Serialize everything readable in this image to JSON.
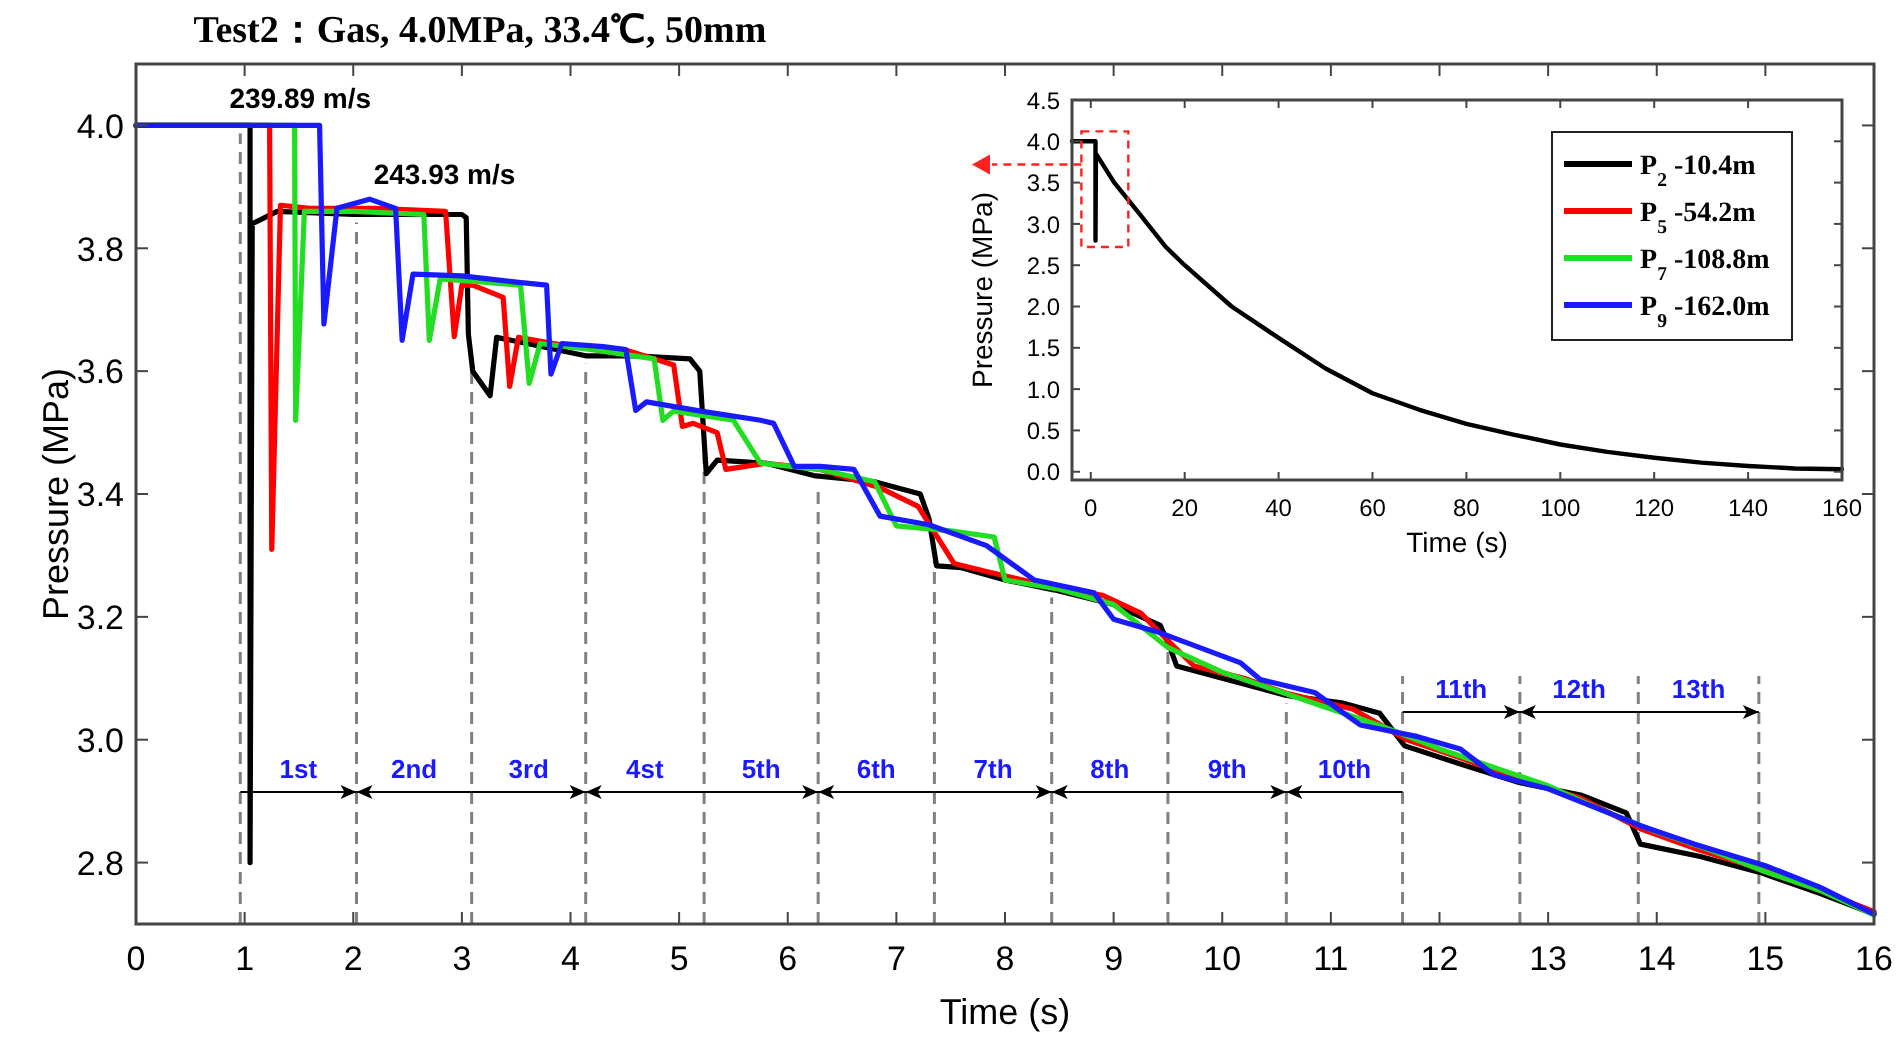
{
  "chart_data": [
    {
      "type": "line",
      "title": "Test2：Gas, 4.0MPa, 33.4℃, 50mm",
      "xlabel": "Time (s)",
      "ylabel": "Pressure (MPa)",
      "xlim": [
        0,
        16
      ],
      "xticks": [
        0,
        1,
        2,
        3,
        4,
        5,
        6,
        7,
        8,
        9,
        10,
        11,
        12,
        13,
        14,
        15,
        16
      ],
      "ylim": [
        2.7,
        4.1
      ],
      "yticks": [
        2.8,
        {
          "value": 3,
          "label": "3.0"
        },
        3.2,
        3.4,
        3.6,
        3.8,
        {
          "value": 4,
          "label": "4.0"
        }
      ],
      "grid": false,
      "legend": "top right",
      "marker": "none",
      "line_style": "solid",
      "series": [
        {
          "name": "P$_{2}$ -10.4m",
          "color": "#000000",
          "x": [
            0,
            1.05,
            1.05,
            1.07,
            1.3,
            2.0,
            2.5,
            3.0,
            3.04,
            3.06,
            3.1,
            3.26,
            3.32,
            3.6,
            4.14,
            4.6,
            5.1,
            5.19,
            5.25,
            5.35,
            5.8,
            6.24,
            6.8,
            7.22,
            7.3,
            7.37,
            7.6,
            8.0,
            8.45,
            9.0,
            9.43,
            9.52,
            9.58,
            10.0,
            10.59,
            11.1,
            11.45,
            11.68,
            12.2,
            12.74,
            13.3,
            13.72,
            13.85,
            14.4,
            14.95,
            15.5,
            16
          ],
          "values": [
            4.0,
            4.0,
            2.8,
            3.84,
            3.86,
            3.855,
            3.855,
            3.855,
            3.85,
            3.66,
            3.6,
            3.56,
            3.655,
            3.645,
            3.625,
            3.625,
            3.62,
            3.6,
            3.433,
            3.455,
            3.45,
            3.43,
            3.42,
            3.4,
            3.36,
            3.283,
            3.28,
            3.26,
            3.244,
            3.22,
            3.186,
            3.15,
            3.12,
            3.1,
            3.072,
            3.06,
            3.043,
            2.99,
            2.96,
            2.93,
            2.91,
            2.881,
            2.83,
            2.81,
            2.784,
            2.75,
            2.716
          ]
        },
        {
          "name": "P$_{5}$ -54.2m",
          "color": "#ff0000",
          "x": [
            0,
            1.23,
            1.25,
            1.33,
            1.6,
            2.2,
            2.85,
            2.93,
            3.0,
            3.1,
            3.38,
            3.44,
            3.52,
            4.0,
            4.5,
            4.95,
            5.03,
            5.13,
            5.35,
            5.43,
            5.8,
            6.3,
            6.85,
            7.2,
            7.53,
            7.8,
            8.4,
            8.9,
            9.25,
            9.45,
            9.74,
            10.2,
            10.6,
            11.2,
            11.7,
            12.2,
            12.74,
            13.3,
            13.85,
            14.4,
            14.95,
            15.5,
            16
          ],
          "values": [
            4.0,
            4.0,
            3.31,
            3.87,
            3.865,
            3.865,
            3.86,
            3.656,
            3.74,
            3.74,
            3.72,
            3.575,
            3.655,
            3.64,
            3.635,
            3.61,
            3.51,
            3.515,
            3.5,
            3.44,
            3.45,
            3.44,
            3.41,
            3.38,
            3.287,
            3.275,
            3.25,
            3.235,
            3.206,
            3.17,
            3.12,
            3.1,
            3.075,
            3.05,
            3.0,
            2.97,
            2.935,
            2.905,
            2.855,
            2.82,
            2.79,
            2.755,
            2.72
          ]
        },
        {
          "name": "P$_{7}$ -108.8m",
          "color": "#22dd22",
          "x": [
            0,
            1.46,
            1.47,
            1.55,
            2.0,
            2.65,
            2.7,
            2.8,
            3.2,
            3.54,
            3.62,
            3.72,
            4.2,
            4.77,
            4.85,
            4.95,
            5.5,
            5.75,
            6.3,
            6.8,
            7.0,
            7.5,
            7.9,
            8.0,
            8.5,
            9.0,
            9.5,
            10.0,
            10.5,
            11.0,
            11.5,
            12.0,
            12.5,
            13.0,
            13.5,
            14.0,
            14.5,
            15.0,
            15.5,
            16
          ],
          "values": [
            4.0,
            4.0,
            3.52,
            3.86,
            3.86,
            3.855,
            3.65,
            3.75,
            3.745,
            3.74,
            3.58,
            3.645,
            3.635,
            3.62,
            3.52,
            3.535,
            3.52,
            3.45,
            3.44,
            3.42,
            3.348,
            3.34,
            3.33,
            3.26,
            3.245,
            3.22,
            3.15,
            3.11,
            3.08,
            3.05,
            3.02,
            2.985,
            2.955,
            2.925,
            2.885,
            2.85,
            2.82,
            2.785,
            2.755,
            2.715
          ]
        },
        {
          "name": "P$_{9}$ -162.0m",
          "color": "#1a1aff",
          "x": [
            0,
            1.69,
            1.73,
            1.85,
            2.15,
            2.39,
            2.45,
            2.55,
            3.0,
            3.5,
            3.78,
            3.82,
            3.92,
            4.3,
            4.51,
            4.6,
            4.7,
            5.2,
            5.75,
            5.87,
            6.06,
            6.3,
            6.61,
            6.85,
            7.3,
            7.83,
            8.27,
            8.82,
            9.0,
            9.43,
            10.17,
            10.35,
            10.85,
            11.27,
            11.8,
            12.19,
            12.5,
            13.0,
            13.5,
            13.85,
            14.35,
            15.0,
            15.5,
            16
          ],
          "values": [
            4.0,
            4.0,
            3.677,
            3.865,
            3.88,
            3.865,
            3.65,
            3.758,
            3.755,
            3.745,
            3.74,
            3.595,
            3.645,
            3.64,
            3.635,
            3.536,
            3.55,
            3.535,
            3.52,
            3.515,
            3.445,
            3.445,
            3.44,
            3.364,
            3.35,
            3.316,
            3.26,
            3.239,
            3.196,
            3.174,
            3.125,
            3.098,
            3.077,
            3.024,
            3.005,
            2.985,
            2.943,
            2.92,
            2.885,
            2.86,
            2.83,
            2.795,
            2.76,
            2.716
          ]
        }
      ],
      "ref_lines": [
        {
          "axis": "x",
          "value": 0.96,
          "color": "#808080",
          "line_style": "dashed"
        },
        {
          "axis": "x",
          "value": 2.03,
          "color": "#808080",
          "line_style": "dashed"
        },
        {
          "axis": "x",
          "value": 3.09,
          "color": "#808080",
          "line_style": "dashed"
        },
        {
          "axis": "x",
          "value": 4.14,
          "color": "#808080",
          "line_style": "dashed"
        },
        {
          "axis": "x",
          "value": 5.23,
          "color": "#808080",
          "line_style": "dashed"
        },
        {
          "axis": "x",
          "value": 6.28,
          "color": "#808080",
          "line_style": "dashed"
        },
        {
          "axis": "x",
          "value": 7.35,
          "color": "#808080",
          "line_style": "dashed"
        },
        {
          "axis": "x",
          "value": 8.43,
          "color": "#808080",
          "line_style": "dashed"
        },
        {
          "axis": "x",
          "value": 9.5,
          "color": "#808080",
          "line_style": "dashed"
        },
        {
          "axis": "x",
          "value": 10.59,
          "color": "#808080",
          "line_style": "dashed"
        },
        {
          "axis": "x",
          "value": 11.66,
          "color": "#808080",
          "line_style": "dashed"
        },
        {
          "axis": "x",
          "value": 12.74,
          "color": "#808080",
          "line_style": "dashed"
        },
        {
          "axis": "x",
          "value": 13.83,
          "color": "#808080",
          "line_style": "dashed"
        },
        {
          "axis": "x",
          "value": 14.94,
          "color": "#808080",
          "line_style": "dashed"
        }
      ],
      "annotations": [
        "239.89 m/s",
        "243.93 m/s",
        {
          "text": "1st",
          "x": 2.03,
          "y": 2.915
        },
        {
          "text": "2nd",
          "x": 2.03,
          "y": 2.915
        },
        {
          "text": "3rd",
          "x": 4.14,
          "y": 2.915
        },
        {
          "text": "4st",
          "x": 4.14,
          "y": 2.915
        },
        {
          "text": "5th",
          "x": 6.28,
          "y": 2.915
        },
        {
          "text": "6th",
          "x": 6.28,
          "y": 2.915
        },
        {
          "text": "7th",
          "x": 8.43,
          "y": 2.915
        },
        {
          "text": "8th",
          "x": 8.43,
          "y": 2.915
        },
        {
          "text": "9th",
          "x": 10.59,
          "y": 2.915
        },
        {
          "text": "10th",
          "x": 10.59,
          "y": 2.915
        },
        {
          "text": "11th",
          "x": 12.74,
          "y": 3.045
        },
        {
          "text": "12th",
          "x": 12.74,
          "y": 3.045
        },
        {
          "text": "13th",
          "x": 14.94,
          "y": 3.045
        }
      ]
    },
    {
      "type": "line",
      "xlabel": "Time (s)",
      "ylabel": "Pressure (MPa)",
      "xlim": [
        -4,
        160
      ],
      "xticks": [
        0,
        20,
        40,
        60,
        80,
        100,
        120,
        140,
        160
      ],
      "ylim": [
        -0.1,
        4.5
      ],
      "yticks": [
        {
          "value": 0,
          "label": "0.0"
        },
        0.5,
        {
          "value": 1,
          "label": "1.0"
        },
        1.5,
        {
          "value": 2,
          "label": "2.0"
        },
        2.5,
        {
          "value": 3,
          "label": "3.0"
        },
        3.5,
        {
          "value": 4,
          "label": "4.0"
        },
        4.5
      ],
      "grid": false,
      "marker": "none",
      "line_style": "solid",
      "series": [
        {
          "color": "#000000",
          "x": [
            -4,
            0,
            1,
            1,
            1.1,
            5,
            10,
            16,
            20,
            30,
            40,
            50,
            60,
            70,
            80,
            90,
            100,
            110,
            120,
            130,
            140,
            150,
            160
          ],
          "values": [
            4.0,
            4.0,
            4.0,
            2.8,
            3.85,
            3.5,
            3.15,
            2.72,
            2.5,
            2.0,
            1.62,
            1.25,
            0.95,
            0.75,
            0.58,
            0.45,
            0.33,
            0.24,
            0.17,
            0.11,
            0.07,
            0.04,
            0.03
          ]
        }
      ]
    }
  ]
}
